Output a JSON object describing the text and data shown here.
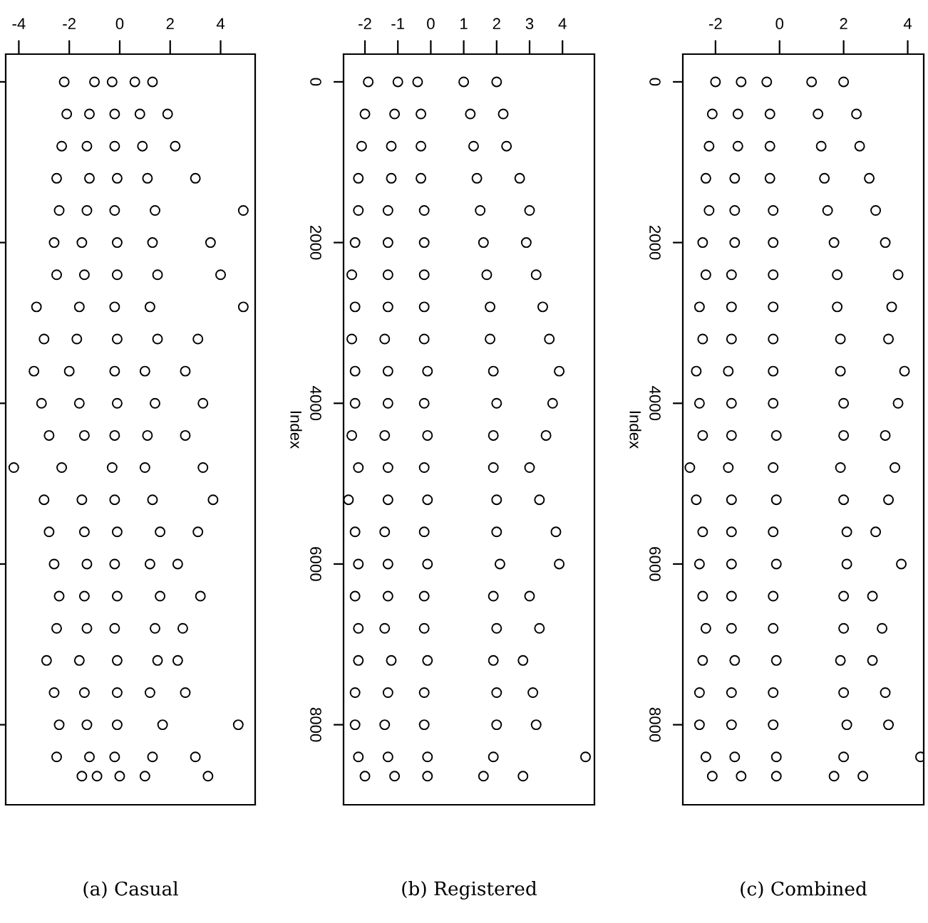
{
  "chart_data": [
    {
      "type": "scatter",
      "marker": "circle",
      "tick_labels": "x",
      "annotations": [
        "(a) Casual"
      ],
      "xlim": [
        -4.52,
        5.37
      ],
      "ylim": [
        8996,
        -345
      ],
      "xticks": [
        -4,
        -2,
        0,
        2,
        4
      ],
      "yticks": [
        0,
        2000,
        4000,
        6000,
        8000
      ],
      "series": [
        {
          "color": "#000000",
          "x": [
            -2.2,
            -1.0,
            -0.3,
            0.6,
            1.3,
            -2.1,
            -1.2,
            -0.2,
            0.8,
            1.9,
            -2.3,
            -1.3,
            -0.2,
            0.9,
            2.2,
            -2.5,
            -1.2,
            -0.1,
            1.1,
            3.0,
            -2.4,
            -1.3,
            -0.2,
            1.4,
            4.9,
            -2.6,
            -1.5,
            -0.1,
            1.3,
            3.6,
            -2.5,
            -1.4,
            -0.1,
            1.5,
            4.0,
            -3.3,
            -1.6,
            -0.2,
            1.2,
            4.9,
            -3.0,
            -1.7,
            -0.1,
            1.5,
            3.1,
            -3.4,
            -2.0,
            -0.2,
            1.0,
            2.6,
            -3.1,
            -1.6,
            -0.1,
            1.4,
            3.3,
            -2.8,
            -1.4,
            -0.2,
            1.1,
            2.6,
            -4.2,
            -2.3,
            -0.3,
            1.0,
            3.3,
            -3.0,
            -1.5,
            -0.2,
            1.3,
            3.7,
            -2.8,
            -1.4,
            -0.1,
            1.6,
            3.1,
            -2.6,
            -1.3,
            -0.2,
            1.2,
            2.3,
            -2.4,
            -1.4,
            -0.1,
            1.6,
            3.2,
            -2.5,
            -1.3,
            -0.2,
            1.4,
            2.5,
            -2.9,
            -1.6,
            -0.1,
            1.5,
            2.3,
            -2.6,
            -1.4,
            -0.1,
            1.2,
            2.6,
            -2.4,
            -1.3,
            -0.1,
            1.7,
            4.7,
            -2.5,
            -1.2,
            -0.2,
            1.3,
            3.0,
            -1.5,
            -0.9,
            0.0,
            1.0,
            3.5
          ],
          "values": [
            0,
            0,
            0,
            0,
            0,
            400,
            400,
            400,
            400,
            400,
            800,
            800,
            800,
            800,
            800,
            1200,
            1200,
            1200,
            1200,
            1200,
            1600,
            1600,
            1600,
            1600,
            1600,
            2000,
            2000,
            2000,
            2000,
            2000,
            2400,
            2400,
            2400,
            2400,
            2400,
            2800,
            2800,
            2800,
            2800,
            2800,
            3200,
            3200,
            3200,
            3200,
            3200,
            3600,
            3600,
            3600,
            3600,
            3600,
            4000,
            4000,
            4000,
            4000,
            4000,
            4400,
            4400,
            4400,
            4400,
            4400,
            4800,
            4800,
            4800,
            4800,
            4800,
            5200,
            5200,
            5200,
            5200,
            5200,
            5600,
            5600,
            5600,
            5600,
            5600,
            6000,
            6000,
            6000,
            6000,
            6000,
            6400,
            6400,
            6400,
            6400,
            6400,
            6800,
            6800,
            6800,
            6800,
            6800,
            7200,
            7200,
            7200,
            7200,
            7200,
            7600,
            7600,
            7600,
            7600,
            7600,
            8000,
            8000,
            8000,
            8000,
            8000,
            8400,
            8400,
            8400,
            8400,
            8400,
            8640,
            8640,
            8640,
            8640,
            8640
          ]
        }
      ]
    },
    {
      "type": "scatter",
      "marker": "circle",
      "ylabel": "Index",
      "annotations": [
        "(b) Registered"
      ],
      "xlim": [
        -2.65,
        4.97
      ],
      "ylim": [
        8996,
        -345
      ],
      "xticks": [
        -2,
        -1,
        0,
        1,
        2,
        3,
        4
      ],
      "yticks": [
        0,
        2000,
        4000,
        6000,
        8000
      ],
      "series": [
        {
          "color": "#000000",
          "x": [
            -1.9,
            -1.0,
            -0.4,
            1.0,
            2.0,
            -2.0,
            -1.1,
            -0.3,
            1.2,
            2.2,
            -2.1,
            -1.2,
            -0.3,
            1.3,
            2.3,
            -2.2,
            -1.2,
            -0.3,
            1.4,
            2.7,
            -2.2,
            -1.3,
            -0.2,
            1.5,
            3.0,
            -2.3,
            -1.3,
            -0.2,
            1.6,
            2.9,
            -2.4,
            -1.3,
            -0.2,
            1.7,
            3.2,
            -2.3,
            -1.3,
            -0.2,
            1.8,
            3.4,
            -2.4,
            -1.4,
            -0.2,
            1.8,
            3.6,
            -2.3,
            -1.3,
            -0.1,
            1.9,
            3.9,
            -2.3,
            -1.3,
            -0.2,
            2.0,
            3.7,
            -2.4,
            -1.4,
            -0.1,
            1.9,
            3.5,
            -2.2,
            -1.3,
            -0.2,
            1.9,
            3.0,
            -2.5,
            -1.3,
            -0.1,
            2.0,
            3.3,
            -2.3,
            -1.4,
            -0.2,
            2.0,
            3.8,
            -2.2,
            -1.3,
            -0.1,
            2.1,
            3.9,
            -2.3,
            -1.3,
            -0.2,
            1.9,
            3.0,
            -2.2,
            -1.4,
            -0.2,
            2.0,
            3.3,
            -2.2,
            -1.2,
            -0.1,
            1.9,
            2.8,
            -2.3,
            -1.3,
            -0.2,
            2.0,
            3.1,
            -2.3,
            -1.4,
            -0.2,
            2.0,
            3.2,
            -2.2,
            -1.3,
            -0.1,
            1.9,
            4.7,
            -2.0,
            -1.1,
            -0.1,
            1.6,
            2.8
          ],
          "values": [
            0,
            0,
            0,
            0,
            0,
            400,
            400,
            400,
            400,
            400,
            800,
            800,
            800,
            800,
            800,
            1200,
            1200,
            1200,
            1200,
            1200,
            1600,
            1600,
            1600,
            1600,
            1600,
            2000,
            2000,
            2000,
            2000,
            2000,
            2400,
            2400,
            2400,
            2400,
            2400,
            2800,
            2800,
            2800,
            2800,
            2800,
            3200,
            3200,
            3200,
            3200,
            3200,
            3600,
            3600,
            3600,
            3600,
            3600,
            4000,
            4000,
            4000,
            4000,
            4000,
            4400,
            4400,
            4400,
            4400,
            4400,
            4800,
            4800,
            4800,
            4800,
            4800,
            5200,
            5200,
            5200,
            5200,
            5200,
            5600,
            5600,
            5600,
            5600,
            5600,
            6000,
            6000,
            6000,
            6000,
            6000,
            6400,
            6400,
            6400,
            6400,
            6400,
            6800,
            6800,
            6800,
            6800,
            6800,
            7200,
            7200,
            7200,
            7200,
            7200,
            7600,
            7600,
            7600,
            7600,
            7600,
            8000,
            8000,
            8000,
            8000,
            8000,
            8400,
            8400,
            8400,
            8400,
            8400,
            8640,
            8640,
            8640,
            8640,
            8640
          ]
        }
      ]
    },
    {
      "type": "scatter",
      "marker": "circle",
      "ylabel": "Index",
      "annotations": [
        "(c) Combined"
      ],
      "xlim": [
        -3.02,
        4.5
      ],
      "ylim": [
        8996,
        -345
      ],
      "xticks": [
        -2,
        0,
        2,
        4
      ],
      "yticks": [
        0,
        2000,
        4000,
        6000,
        8000
      ],
      "series": [
        {
          "color": "#000000",
          "x": [
            -2.0,
            -1.2,
            -0.4,
            1.0,
            2.0,
            -2.1,
            -1.3,
            -0.3,
            1.2,
            2.4,
            -2.2,
            -1.3,
            -0.3,
            1.3,
            2.5,
            -2.3,
            -1.4,
            -0.3,
            1.4,
            2.8,
            -2.2,
            -1.4,
            -0.2,
            1.5,
            3.0,
            -2.4,
            -1.4,
            -0.2,
            1.7,
            3.3,
            -2.3,
            -1.5,
            -0.2,
            1.8,
            3.7,
            -2.5,
            -1.5,
            -0.2,
            1.8,
            3.5,
            -2.4,
            -1.5,
            -0.2,
            1.9,
            3.4,
            -2.6,
            -1.6,
            -0.2,
            1.9,
            3.9,
            -2.5,
            -1.5,
            -0.2,
            2.0,
            3.7,
            -2.4,
            -1.5,
            -0.1,
            2.0,
            3.3,
            -2.8,
            -1.6,
            -0.2,
            1.9,
            3.6,
            -2.6,
            -1.5,
            -0.1,
            2.0,
            3.4,
            -2.4,
            -1.5,
            -0.2,
            2.1,
            3.0,
            -2.5,
            -1.5,
            -0.1,
            2.1,
            3.8,
            -2.4,
            -1.5,
            -0.2,
            2.0,
            2.9,
            -2.3,
            -1.5,
            -0.2,
            2.0,
            3.2,
            -2.4,
            -1.4,
            -0.1,
            1.9,
            2.9,
            -2.5,
            -1.5,
            -0.2,
            2.0,
            3.3,
            -2.5,
            -1.5,
            -0.2,
            2.1,
            3.4,
            -2.3,
            -1.4,
            -0.1,
            2.0,
            4.4,
            -2.1,
            -1.2,
            -0.1,
            1.7,
            2.6
          ],
          "values": [
            0,
            0,
            0,
            0,
            0,
            400,
            400,
            400,
            400,
            400,
            800,
            800,
            800,
            800,
            800,
            1200,
            1200,
            1200,
            1200,
            1200,
            1600,
            1600,
            1600,
            1600,
            1600,
            2000,
            2000,
            2000,
            2000,
            2000,
            2400,
            2400,
            2400,
            2400,
            2400,
            2800,
            2800,
            2800,
            2800,
            2800,
            3200,
            3200,
            3200,
            3200,
            3200,
            3600,
            3600,
            3600,
            3600,
            3600,
            4000,
            4000,
            4000,
            4000,
            4000,
            4400,
            4400,
            4400,
            4400,
            4400,
            4800,
            4800,
            4800,
            4800,
            4800,
            5200,
            5200,
            5200,
            5200,
            5200,
            5600,
            5600,
            5600,
            5600,
            5600,
            6000,
            6000,
            6000,
            6000,
            6000,
            6400,
            6400,
            6400,
            6400,
            6400,
            6800,
            6800,
            6800,
            6800,
            6800,
            7200,
            7200,
            7200,
            7200,
            7200,
            7600,
            7600,
            7600,
            7600,
            7600,
            8000,
            8000,
            8000,
            8000,
            8000,
            8400,
            8400,
            8400,
            8400,
            8400,
            8640,
            8640,
            8640,
            8640,
            8640
          ]
        }
      ]
    }
  ]
}
